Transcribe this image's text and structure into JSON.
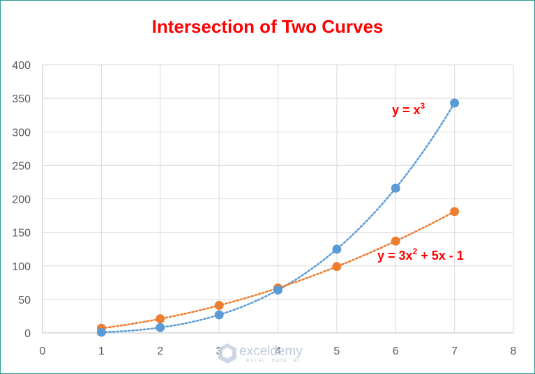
{
  "chart_data": {
    "type": "scatter",
    "title": "Intersection of Two Curves",
    "xlabel": "",
    "ylabel": "",
    "xlim": [
      0,
      8
    ],
    "ylim": [
      0,
      400
    ],
    "xticks": [
      0,
      1,
      2,
      3,
      4,
      5,
      6,
      7,
      8
    ],
    "yticks": [
      0,
      50,
      100,
      150,
      200,
      250,
      300,
      350,
      400
    ],
    "grid": true,
    "legend": "none",
    "series": [
      {
        "label_base": "y = x",
        "label_sup": "3",
        "color": "#5b9bd5",
        "trendline": "dotted",
        "x": [
          1,
          2,
          3,
          4,
          5,
          6,
          7
        ],
        "y": [
          1,
          8,
          27,
          64,
          125,
          216,
          343
        ]
      },
      {
        "label_base": "y = 3x",
        "label_sup": "2",
        "label_rest": " + 5x - 1",
        "color": "#ed7d31",
        "trendline": "dotted",
        "x": [
          1,
          2,
          3,
          4,
          5,
          6,
          7
        ],
        "y": [
          7,
          21,
          41,
          67,
          99,
          137,
          181
        ]
      }
    ],
    "annotations_color": "#ff0000"
  },
  "watermark": {
    "name": "exceldemy",
    "tagline": "EXCEL · DATA · BI",
    "icon": "exceldemy-logo-icon"
  }
}
